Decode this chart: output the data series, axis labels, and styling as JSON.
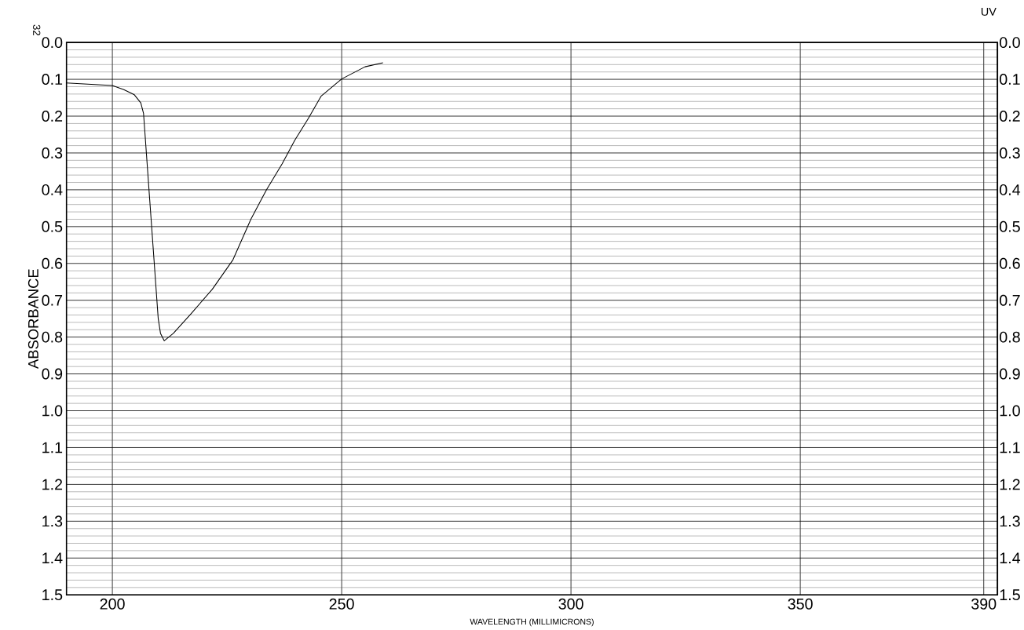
{
  "chart_data": {
    "type": "line",
    "xlabel": "WAVELENGTH (MILLIMICRONS)",
    "ylabel": "ABSORBANCE",
    "annotations": [
      "UV",
      "32"
    ],
    "x": [
      190,
      200,
      202.5,
      204.8,
      206.2,
      206.8,
      210,
      210.5,
      211.3,
      213.3,
      217.2,
      221.8,
      226.3,
      230.2,
      233.6,
      237,
      239.8,
      242.7,
      245.5,
      250,
      255.1,
      259
    ],
    "series": [
      {
        "color": "#000000",
        "values": [
          0.11,
          0.117,
          0.128,
          0.142,
          0.164,
          0.193,
          0.75,
          0.79,
          0.81,
          0.79,
          0.736,
          0.67,
          0.59,
          0.48,
          0.4,
          0.33,
          0.265,
          0.207,
          0.146,
          0.099,
          0.066,
          0.055
        ]
      }
    ],
    "xlim": [
      190,
      393
    ],
    "xticks": [
      200,
      250,
      300,
      350,
      390
    ],
    "ylim": [
      1.5,
      0.0
    ],
    "yticks": [
      {
        "value": 0,
        "label": "0.0"
      },
      0.1,
      0.2,
      0.3,
      0.4,
      0.5,
      0.6,
      0.7,
      0.8,
      0.9,
      {
        "value": 1,
        "label": "1.0"
      },
      1.1,
      1.2,
      1.3,
      1.4,
      1.5
    ],
    "y2lim": [
      1.5,
      0.0
    ],
    "y2ticks": [
      {
        "value": 0,
        "label": "0.0"
      },
      0.1,
      0.2,
      0.3,
      0.4,
      0.5,
      0.6,
      0.7,
      0.8,
      0.9,
      {
        "value": 1,
        "label": "1.0"
      },
      1.1,
      1.2,
      1.3,
      1.4,
      1.5
    ],
    "grid": true,
    "marker": "none",
    "line_style": "solid"
  }
}
